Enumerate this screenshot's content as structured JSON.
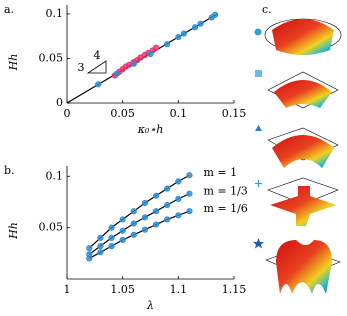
{
  "chart_data": [
    {
      "type": "scatter",
      "panel_label": "a.",
      "xlabel": "κ₀⋆h",
      "ylabel": "Hh",
      "xlim": [
        0,
        0.15
      ],
      "ylim": [
        0,
        0.11
      ],
      "xticks": [
        0,
        0.05,
        0.1,
        0.15
      ],
      "yticks": [
        0,
        0.05,
        0.1
      ],
      "slope_labels": [
        "4",
        "3"
      ],
      "series": [
        {
          "color": "#000000",
          "style": "line",
          "x": [
            0,
            0.135
          ],
          "values": [
            0,
            0.1
          ]
        },
        {
          "color": "#e8306a",
          "style": "marker",
          "x": [
            0.043,
            0.047,
            0.05,
            0.053,
            0.056,
            0.06,
            0.063,
            0.066,
            0.07,
            0.073,
            0.077,
            0.08
          ],
          "values": [
            0.031,
            0.035,
            0.038,
            0.041,
            0.043,
            0.046,
            0.048,
            0.051,
            0.054,
            0.056,
            0.059,
            0.062
          ]
        },
        {
          "color": "#2a8fd6",
          "style": "marker",
          "x": [
            0.028,
            0.045,
            0.06,
            0.075,
            0.09,
            0.1,
            0.105,
            0.115,
            0.12,
            0.13,
            0.133
          ],
          "values": [
            0.021,
            0.033,
            0.044,
            0.055,
            0.066,
            0.074,
            0.078,
            0.085,
            0.089,
            0.096,
            0.099
          ]
        }
      ]
    },
    {
      "type": "scatter",
      "panel_label": "b.",
      "xlabel": "λ",
      "ylabel": "Hh",
      "xlim": [
        1,
        1.15
      ],
      "ylim": [
        0,
        0.11
      ],
      "xticks": [
        1,
        1.05,
        1.1,
        1.15
      ],
      "yticks": [
        0.05,
        0.1
      ],
      "series": [
        {
          "name": "m = 1",
          "color": "#2a8fd6",
          "style": "both",
          "x": [
            1.02,
            1.03,
            1.04,
            1.05,
            1.06,
            1.07,
            1.08,
            1.09,
            1.1,
            1.11
          ],
          "values": [
            0.03,
            0.04,
            0.05,
            0.058,
            0.066,
            0.074,
            0.081,
            0.088,
            0.095,
            0.101
          ]
        },
        {
          "name": "m = 1/3",
          "color": "#2a8fd6",
          "style": "both",
          "x": [
            1.02,
            1.03,
            1.04,
            1.05,
            1.06,
            1.07,
            1.08,
            1.09,
            1.1,
            1.11
          ],
          "values": [
            0.024,
            0.032,
            0.04,
            0.047,
            0.054,
            0.06,
            0.066,
            0.072,
            0.078,
            0.083
          ]
        },
        {
          "name": "m = 1/6",
          "color": "#2a8fd6",
          "style": "both",
          "x": [
            1.02,
            1.03,
            1.04,
            1.05,
            1.06,
            1.07,
            1.08,
            1.09,
            1.1,
            1.11
          ],
          "values": [
            0.02,
            0.026,
            0.032,
            0.038,
            0.043,
            0.048,
            0.053,
            0.058,
            0.062,
            0.066
          ]
        }
      ]
    }
  ],
  "panel_c": {
    "label": "c."
  }
}
